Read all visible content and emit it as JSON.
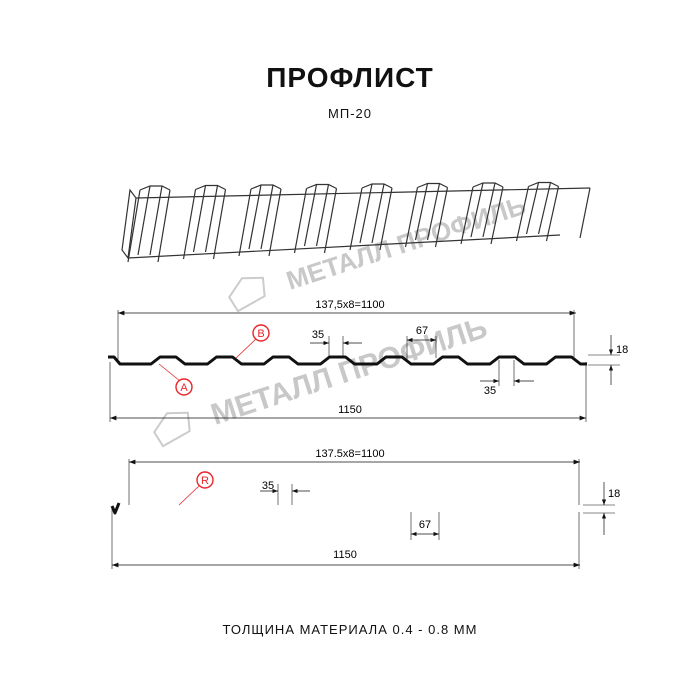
{
  "title": "ПРОФЛИСТ",
  "subtitle": "МП-20",
  "watermark": "МЕТАЛЛ ПРОФИЛЬ",
  "footer": "ТОЛЩИНА МАТЕРИАЛА 0.4 - 0.8 ММ",
  "colors": {
    "line": "#111111",
    "callout": "#e8262a",
    "watermark": "#c8c8c8"
  },
  "profile1": {
    "span_label": "137,5x8=1100",
    "total_label": "1150",
    "rib_top_label": "35",
    "rib_pitch_label": "67",
    "rib_bottom_label": "35",
    "height_label": "18",
    "callout_a": "A",
    "callout_b": "B"
  },
  "profile2": {
    "span_label": "137.5x8=1100",
    "total_label": "1150",
    "rib_top_label": "35",
    "rib_pitch_label": "67",
    "height_label": "18",
    "callout_r": "R"
  }
}
